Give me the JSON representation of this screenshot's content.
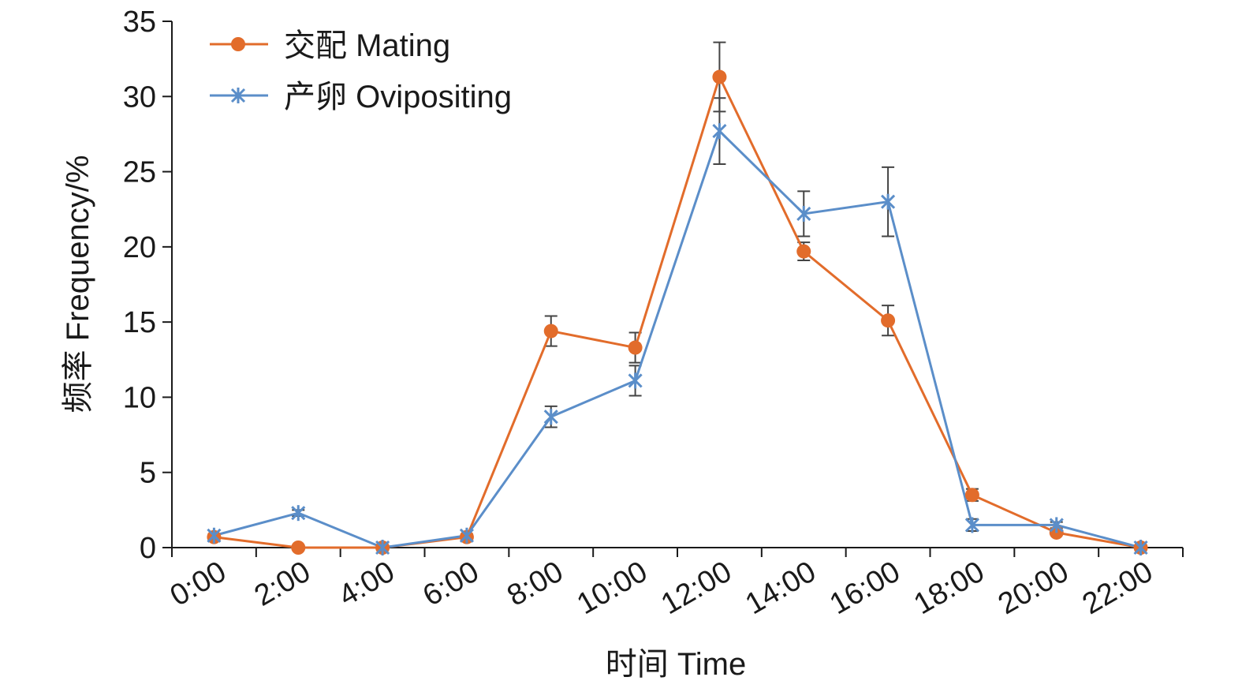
{
  "chart_data": {
    "type": "line",
    "title": "",
    "xlabel": "时间 Time",
    "ylabel": "频率 Frequency/%",
    "categories": [
      "0:00",
      "2:00",
      "4:00",
      "6:00",
      "8:00",
      "10:00",
      "12:00",
      "14:00",
      "16:00",
      "18:00",
      "20:00",
      "22:00"
    ],
    "yticks": [
      "0",
      "5",
      "10",
      "15",
      "20",
      "25",
      "30",
      "35"
    ],
    "ylim": [
      0,
      35
    ],
    "grid": false,
    "legend_position": "top-left",
    "series": [
      {
        "name": "交配 Mating",
        "color": "#e26c2b",
        "marker": "circle",
        "values": [
          0.7,
          0.0,
          0.0,
          0.7,
          14.4,
          13.3,
          31.3,
          19.7,
          15.1,
          3.5,
          1.0,
          0.0
        ],
        "errors": [
          0.1,
          0.0,
          0.0,
          0.1,
          1.0,
          1.0,
          2.3,
          0.6,
          1.0,
          0.4,
          0.0,
          0.0
        ]
      },
      {
        "name": "产卵 Ovipositing",
        "color": "#5b8ec9",
        "marker": "x",
        "values": [
          0.8,
          2.3,
          0.0,
          0.8,
          8.7,
          11.1,
          27.7,
          22.2,
          23.0,
          1.5,
          1.5,
          0.0
        ],
        "errors": [
          0.1,
          0.2,
          0.0,
          0.1,
          0.7,
          1.0,
          2.2,
          1.5,
          2.3,
          0.4,
          0.2,
          0.0
        ]
      }
    ]
  }
}
